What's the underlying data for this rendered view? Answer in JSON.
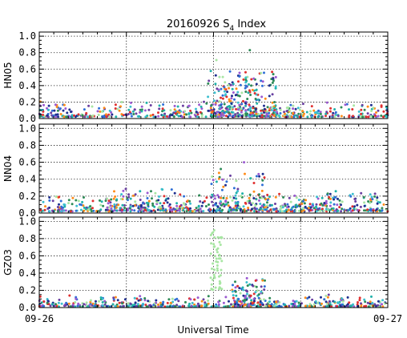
{
  "chart_data": {
    "type": "scatter",
    "title_main": "20160926 S",
    "title_sub": "4",
    "title_tail": " Index",
    "xlabel": "Universal Time",
    "x_tick_labels": [
      "09-26",
      "09-27"
    ],
    "xlim": [
      0,
      24
    ],
    "grid": "dotted",
    "panels": [
      {
        "ylabel": "HN05",
        "ylim": [
          0,
          1.05
        ],
        "yticks": [
          "0.0",
          "0.2",
          "0.4",
          "0.6",
          "0.8",
          "1.0"
        ],
        "baseline": [
          0.02,
          0.12
        ],
        "bursts": [
          {
            "x0": 11.6,
            "x1": 16.4,
            "ymax": 0.55,
            "n": 170
          },
          {
            "x0": 12.2,
            "x1": 13.4,
            "ymax": 0.4,
            "n": 40
          },
          {
            "x0": 14.2,
            "x1": 15.0,
            "ymax": 0.5,
            "n": 40
          }
        ],
        "highlights": [
          {
            "x": 12.2,
            "y": 0.71,
            "color": "#a8e6a3"
          },
          {
            "x": 14.5,
            "y": 0.83,
            "color": "#2e8b57"
          },
          {
            "x": 8.5,
            "y": 0.12,
            "color": "#e03030"
          }
        ]
      },
      {
        "ylabel": "NN04",
        "ylim": [
          0,
          1.05
        ],
        "yticks": [
          "0.0",
          "0.2",
          "0.4",
          "0.6",
          "0.8",
          "1.0"
        ],
        "baseline": [
          0.02,
          0.14
        ],
        "bursts": [
          {
            "x0": 4.5,
            "x1": 10.0,
            "ymax": 0.26,
            "n": 70
          },
          {
            "x0": 11.8,
            "x1": 15.8,
            "ymax": 0.45,
            "n": 110
          },
          {
            "x0": 16.5,
            "x1": 23.5,
            "ymax": 0.2,
            "n": 60
          }
        ],
        "highlights": [
          {
            "x": 12.5,
            "y": 0.52,
            "color": "#2e8b57"
          },
          {
            "x": 14.1,
            "y": 0.6,
            "color": "#9b59d0"
          },
          {
            "x": 8.6,
            "y": 0.2,
            "color": "#e03030"
          }
        ]
      },
      {
        "ylabel": "GZ03",
        "ylim": [
          0,
          1.05
        ],
        "yticks": [
          "0.0",
          "0.2",
          "0.4",
          "0.6",
          "0.8",
          "1.0"
        ],
        "baseline": [
          0.01,
          0.08
        ],
        "bursts": [
          {
            "x0": 13.2,
            "x1": 15.6,
            "ymax": 0.32,
            "n": 90
          }
        ],
        "column": {
          "x0": 11.8,
          "x1": 12.6,
          "y0": 0.2,
          "y1": 0.9,
          "n": 55,
          "color": "#a8e6a3"
        },
        "highlights": [
          {
            "x": 11.9,
            "y": 0.86,
            "color": "#a8e6a3"
          },
          {
            "x": 14.3,
            "y": 0.34,
            "color": "#9b59d0"
          }
        ]
      }
    ],
    "series_colors": [
      "#9b59d0",
      "#3cbfcf",
      "#2e8b57",
      "#1f2f8f",
      "#2f6fd6",
      "#e03030",
      "#a8e6a3",
      "#ff8c1a",
      "#6a3fa0",
      "#20b2aa"
    ]
  }
}
